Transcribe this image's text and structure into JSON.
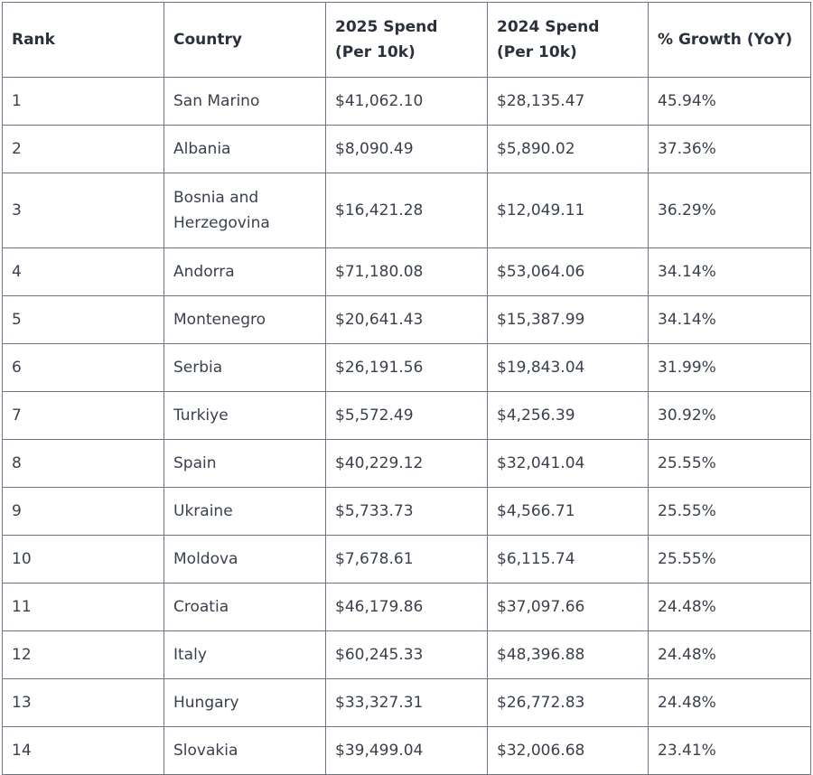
{
  "table": {
    "headers": {
      "rank": "Rank",
      "country": "Country",
      "spend2025_line1": "2025 Spend",
      "spend2025_line2": "(Per 10k)",
      "spend2024_line1": "2024 Spend",
      "spend2024_line2": "(Per 10k)",
      "growth": "% Growth (YoY)"
    },
    "rows": [
      {
        "rank": "1",
        "country": "San Marino",
        "spend2025": "$41,062.10",
        "spend2024": "$28,135.47",
        "growth": "45.94%"
      },
      {
        "rank": "2",
        "country": "Albania",
        "spend2025": "$8,090.49",
        "spend2024": "$5,890.02",
        "growth": "37.36%"
      },
      {
        "rank": "3",
        "country_line1": "Bosnia and",
        "country_line2": "Herzegovina",
        "spend2025": "$16,421.28",
        "spend2024": "$12,049.11",
        "growth": "36.29%"
      },
      {
        "rank": "4",
        "country": "Andorra",
        "spend2025": "$71,180.08",
        "spend2024": "$53,064.06",
        "growth": "34.14%"
      },
      {
        "rank": "5",
        "country": "Montenegro",
        "spend2025": "$20,641.43",
        "spend2024": "$15,387.99",
        "growth": "34.14%"
      },
      {
        "rank": "6",
        "country": "Serbia",
        "spend2025": "$26,191.56",
        "spend2024": "$19,843.04",
        "growth": "31.99%"
      },
      {
        "rank": "7",
        "country": "Turkiye",
        "spend2025": "$5,572.49",
        "spend2024": "$4,256.39",
        "growth": "30.92%"
      },
      {
        "rank": "8",
        "country": "Spain",
        "spend2025": "$40,229.12",
        "spend2024": "$32,041.04",
        "growth": "25.55%"
      },
      {
        "rank": "9",
        "country": "Ukraine",
        "spend2025": "$5,733.73",
        "spend2024": "$4,566.71",
        "growth": "25.55%"
      },
      {
        "rank": "10",
        "country": "Moldova",
        "spend2025": "$7,678.61",
        "spend2024": "$6,115.74",
        "growth": "25.55%"
      },
      {
        "rank": "11",
        "country": "Croatia",
        "spend2025": "$46,179.86",
        "spend2024": "$37,097.66",
        "growth": "24.48%"
      },
      {
        "rank": "12",
        "country": "Italy",
        "spend2025": "$60,245.33",
        "spend2024": "$48,396.88",
        "growth": "24.48%"
      },
      {
        "rank": "13",
        "country": "Hungary",
        "spend2025": "$33,327.31",
        "spend2024": "$26,772.83",
        "growth": "24.48%"
      },
      {
        "rank": "14",
        "country": "Slovakia",
        "spend2025": "$39,499.04",
        "spend2024": "$32,006.68",
        "growth": "23.41%"
      }
    ]
  }
}
